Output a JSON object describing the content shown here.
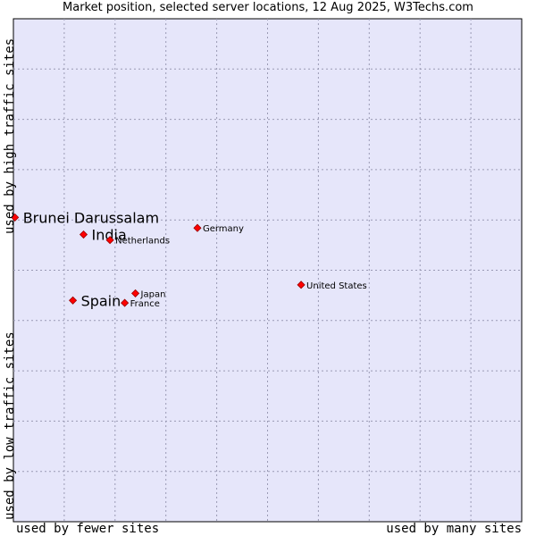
{
  "chart_data": {
    "type": "scatter",
    "title": "Market position, selected server locations, 12 Aug 2025, W3Techs.com",
    "xlabel_low": "used by fewer sites",
    "xlabel_high": "used by many sites",
    "ylabel_low": "used by low traffic sites",
    "ylabel_high": "used by high traffic sites",
    "xlim": [
      0,
      100
    ],
    "ylim": [
      0,
      100
    ],
    "grid": true,
    "points": [
      {
        "name": "Brunei Darussalam",
        "x": 0.3,
        "y": 60.5,
        "highlight": true,
        "label_side": "right"
      },
      {
        "name": "India",
        "x": 13.8,
        "y": 57.1,
        "highlight": true,
        "label_side": "right"
      },
      {
        "name": "Netherlands",
        "x": 19.0,
        "y": 56.0,
        "highlight": false,
        "label_side": "right"
      },
      {
        "name": "Germany",
        "x": 36.2,
        "y": 58.4,
        "highlight": false,
        "label_side": "right"
      },
      {
        "name": "United States",
        "x": 56.6,
        "y": 47.1,
        "highlight": false,
        "label_side": "right"
      },
      {
        "name": "Japan",
        "x": 24.0,
        "y": 45.4,
        "highlight": false,
        "label_side": "right"
      },
      {
        "name": "France",
        "x": 21.9,
        "y": 43.5,
        "highlight": false,
        "label_side": "right"
      },
      {
        "name": "Spain",
        "x": 11.7,
        "y": 44.0,
        "highlight": true,
        "label_side": "right"
      }
    ],
    "colors": {
      "plot_bg": "#e6e6fa",
      "grid": "#9a9ab4",
      "point": "#ff0000",
      "point_stroke": "#990000"
    }
  }
}
